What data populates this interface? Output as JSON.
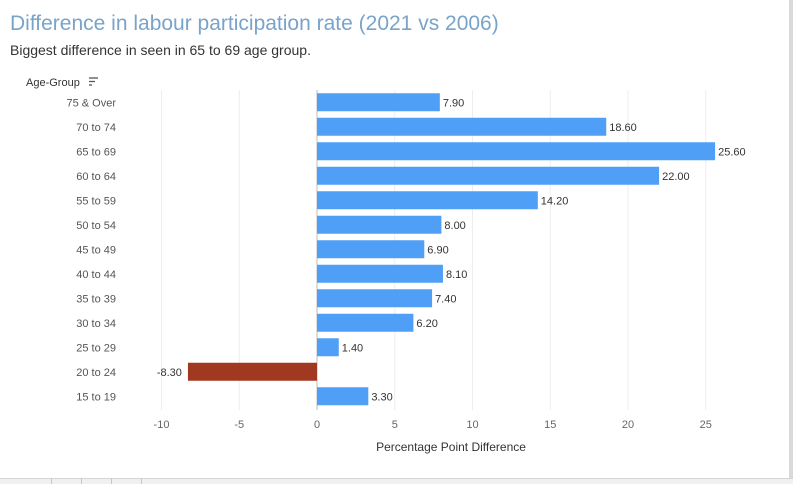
{
  "title": "Difference in labour participation rate (2021 vs 2006)",
  "subtitle": "Biggest difference in seen in 65 to 69 age group.",
  "colors": {
    "title": "#79a3c9",
    "positive_bar": "#4e9ff5",
    "negative_bar": "#a0391f",
    "gridline": "#ededed"
  },
  "chart_data": {
    "type": "bar",
    "orientation": "horizontal",
    "category_axis_title": "Age-Group",
    "category_axis_icon": "sort-descending-icon",
    "xlabel": "Percentage Point Difference",
    "xlim": [
      -13,
      30
    ],
    "xticks": [
      -10,
      -5,
      0,
      5,
      10,
      15,
      20,
      25
    ],
    "grid": true,
    "categories": [
      "75 & Over",
      "70 to 74",
      "65 to 69",
      "60 to 64",
      "55 to 59",
      "50 to 54",
      "45 to 49",
      "40 to 44",
      "35 to 39",
      "30 to 34",
      "25 to 29",
      "20 to 24",
      "15 to 19"
    ],
    "values": [
      7.9,
      18.6,
      25.6,
      22.0,
      14.2,
      8.0,
      6.9,
      8.1,
      7.4,
      6.2,
      1.4,
      -8.3,
      3.3
    ],
    "value_labels": [
      "7.90",
      "18.60",
      "25.60",
      "22.00",
      "14.20",
      "8.00",
      "6.90",
      "8.10",
      "7.40",
      "6.20",
      "1.40",
      "-8.30",
      "3.30"
    ]
  }
}
